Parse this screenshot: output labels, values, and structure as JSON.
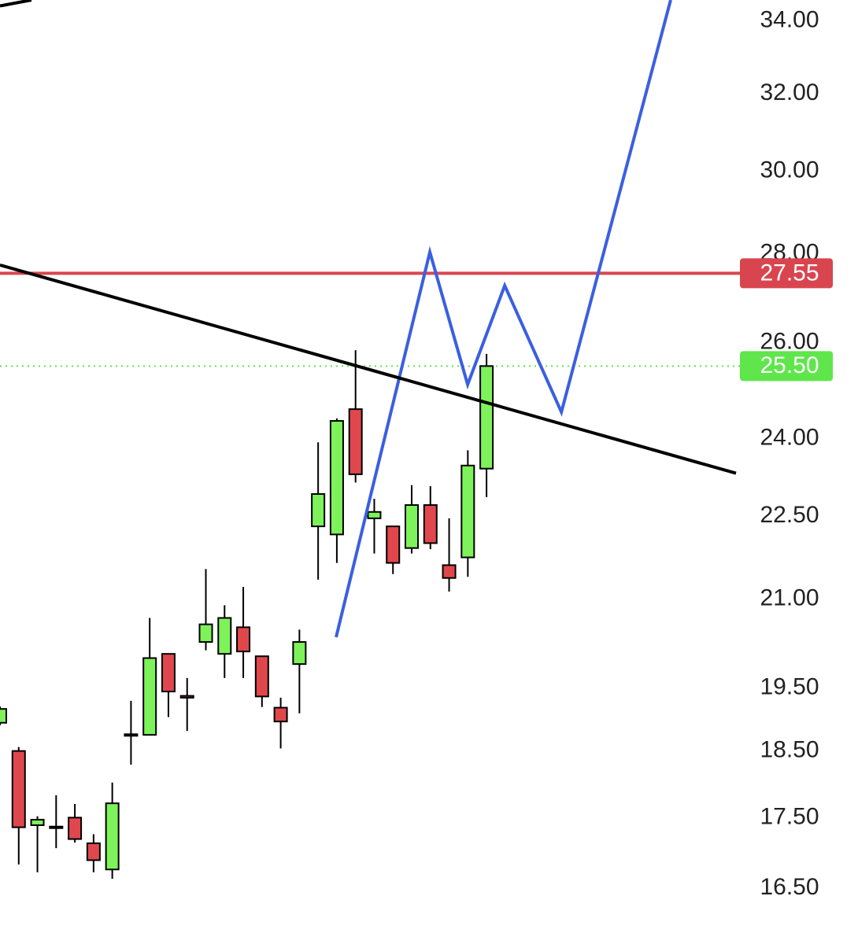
{
  "chart_data": {
    "type": "candlestick",
    "log_scale": true,
    "up_color": "#7ef25a",
    "down_color": "#e0474c",
    "ylim": [
      15.75,
      34.6
    ],
    "xlim": [
      0,
      39.33
    ],
    "yticks": [
      {
        "value": 34,
        "label": "34.00"
      },
      {
        "value": 32,
        "label": "32.00"
      },
      {
        "value": 30,
        "label": "30.00"
      },
      {
        "value": 28,
        "label": "28.00"
      },
      {
        "value": 26,
        "label": "26.00"
      },
      {
        "value": 24,
        "label": "24.00"
      },
      {
        "value": 22.5,
        "label": "22.50"
      },
      {
        "value": 21,
        "label": "21.00"
      },
      {
        "value": 19.5,
        "label": "19.50"
      },
      {
        "value": 18.5,
        "label": "18.50"
      },
      {
        "value": 17.5,
        "label": "17.50"
      },
      {
        "value": 16.5,
        "label": "16.50"
      }
    ],
    "candles": [
      {
        "open": 18.94,
        "high": 19.2,
        "low": 18.9,
        "close": 19.16
      },
      {
        "open": 18.5,
        "high": 18.56,
        "low": 16.83,
        "close": 17.36
      },
      {
        "open": 17.39,
        "high": 17.52,
        "low": 16.72,
        "close": 17.47
      },
      {
        "open": 17.36,
        "high": 17.83,
        "low": 17.06,
        "close": 17.37
      },
      {
        "open": 17.5,
        "high": 17.7,
        "low": 17.14,
        "close": 17.19
      },
      {
        "open": 17.13,
        "high": 17.26,
        "low": 16.72,
        "close": 16.89
      },
      {
        "open": 16.76,
        "high": 18.02,
        "low": 16.63,
        "close": 17.71
      },
      {
        "open": 18.75,
        "high": 19.29,
        "low": 18.29,
        "close": 18.76
      },
      {
        "open": 18.75,
        "high": 20.67,
        "low": 18.75,
        "close": 19.99
      },
      {
        "open": 20.06,
        "high": 20.06,
        "low": 19.03,
        "close": 19.44
      },
      {
        "open": 19.37,
        "high": 19.66,
        "low": 18.81,
        "close": 19.34
      },
      {
        "open": 20.26,
        "high": 21.53,
        "low": 20.12,
        "close": 20.56
      },
      {
        "open": 20.06,
        "high": 20.89,
        "low": 19.66,
        "close": 20.67
      },
      {
        "open": 20.51,
        "high": 21.21,
        "low": 19.66,
        "close": 20.1
      },
      {
        "open": 20.02,
        "high": 20.02,
        "low": 19.19,
        "close": 19.36
      },
      {
        "open": 19.18,
        "high": 19.34,
        "low": 18.54,
        "close": 18.96
      },
      {
        "open": 19.89,
        "high": 20.47,
        "low": 19.09,
        "close": 20.26
      },
      {
        "open": 22.31,
        "high": 23.93,
        "low": 21.34,
        "close": 22.92
      },
      {
        "open": 22.16,
        "high": 24.41,
        "low": 21.64,
        "close": 24.36
      },
      {
        "open": 24.6,
        "high": 25.84,
        "low": 23.14,
        "close": 23.3
      },
      {
        "open": 22.46,
        "high": 22.83,
        "low": 21.81,
        "close": 22.58
      },
      {
        "open": 22.31,
        "high": 22.31,
        "low": 21.44,
        "close": 21.64
      },
      {
        "open": 21.91,
        "high": 23.09,
        "low": 21.81,
        "close": 22.71
      },
      {
        "open": 22.71,
        "high": 23.07,
        "low": 21.89,
        "close": 22.0
      },
      {
        "open": 21.6,
        "high": 22.46,
        "low": 21.13,
        "close": 21.37
      },
      {
        "open": 21.74,
        "high": 23.77,
        "low": 21.39,
        "close": 23.47
      },
      {
        "open": 23.41,
        "high": 25.76,
        "low": 22.86,
        "close": 25.5
      }
    ],
    "lines": [
      {
        "color": "#3b5fe0",
        "x": [
          17.96,
          22.97,
          24.99,
          26.97,
          30.0,
          35.84
        ],
        "values": [
          20.34,
          28.04,
          25.11,
          27.27,
          24.54,
          34.6
        ]
      },
      {
        "color": "#000000",
        "x": [
          0,
          39.33
        ],
        "values": [
          27.74,
          23.32
        ]
      },
      {
        "color": "#000000",
        "x": [
          0,
          1.68
        ],
        "values": [
          34.43,
          34.6
        ]
      }
    ],
    "price_lines": [
      {
        "value": 27.55,
        "color": "#d9454f",
        "style": "solid"
      },
      {
        "value": 25.5,
        "label": "25.50",
        "color": "#5fe64a",
        "style": "dotted"
      }
    ]
  }
}
